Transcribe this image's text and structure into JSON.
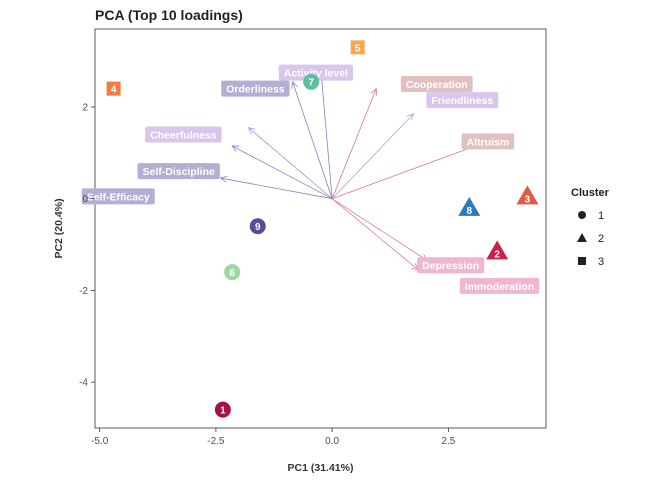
{
  "chart_data": {
    "type": "scatter",
    "title": "PCA (Top 10 loadings)",
    "xlabel": "PC1 (31.41%)",
    "ylabel": "PC2 (20.4%)",
    "xlim": [
      -5.1,
      4.6
    ],
    "ylim": [
      -5.0,
      3.7
    ],
    "xticks": [
      -5.0,
      -2.5,
      0.0,
      2.5
    ],
    "xtick_labels": [
      "-5.0",
      "-2.5",
      "0.0",
      "2.5"
    ],
    "yticks": [
      -4,
      -2,
      0,
      2
    ],
    "ytick_labels": [
      "-4",
      "-2",
      "0",
      "2"
    ],
    "grid": false,
    "legend": {
      "title": "Cluster",
      "placement": "right",
      "items": [
        {
          "label": "1",
          "shape": "circle"
        },
        {
          "label": "2",
          "shape": "triangle"
        },
        {
          "label": "3",
          "shape": "square"
        }
      ]
    },
    "points": [
      {
        "label": "1",
        "x": -2.35,
        "y": -4.6,
        "cluster": "1",
        "color": "#a50f4a"
      },
      {
        "label": "6",
        "x": -2.15,
        "y": -1.6,
        "cluster": "1",
        "color": "#9fd89f"
      },
      {
        "label": "9",
        "x": -1.6,
        "y": -0.6,
        "cluster": "1",
        "color": "#5b4b9a"
      },
      {
        "label": "7",
        "x": -0.45,
        "y": 2.55,
        "cluster": "1",
        "color": "#5ebf9f"
      },
      {
        "label": "8",
        "x": 2.95,
        "y": -0.2,
        "cluster": "2",
        "color": "#2e7ab8"
      },
      {
        "label": "2",
        "x": 3.55,
        "y": -1.15,
        "cluster": "2",
        "color": "#c8224a"
      },
      {
        "label": "3",
        "x": 4.2,
        "y": 0.05,
        "cluster": "2",
        "color": "#e05a44"
      },
      {
        "label": "4",
        "x": -4.7,
        "y": 2.4,
        "cluster": "3",
        "color": "#f47d3e"
      },
      {
        "label": "5",
        "x": 0.55,
        "y": 3.3,
        "cluster": "3",
        "color": "#f7a84f"
      }
    ],
    "loadings": [
      {
        "name": "Activity level",
        "x": -0.25,
        "y": 2.9,
        "color": "#d9c6ec",
        "arrow_color": "#8b7fc0",
        "lx": -0.35,
        "ly": 2.75
      },
      {
        "name": "Orderliness",
        "x": -0.85,
        "y": 2.55,
        "color": "#b3afd4",
        "arrow_color": "#8b7fc0",
        "lx": -1.65,
        "ly": 2.4
      },
      {
        "name": "Cooperation",
        "x": 0.95,
        "y": 2.4,
        "color": "#e3c0c0",
        "arrow_color": "#d97a8a",
        "lx": 2.25,
        "ly": 2.5
      },
      {
        "name": "Friendliness",
        "x": 1.75,
        "y": 1.85,
        "color": "#d9c6ec",
        "arrow_color": "#b0a2dc",
        "lx": 2.8,
        "ly": 2.15
      },
      {
        "name": "Altruism",
        "x": 3.35,
        "y": 1.25,
        "color": "#e3c0c0",
        "arrow_color": "#d97a8a",
        "lx": 3.35,
        "ly": 1.25
      },
      {
        "name": "Cheerfulness",
        "x": -1.8,
        "y": 1.55,
        "color": "#d9c6ec",
        "arrow_color": "#a798d4",
        "lx": -3.2,
        "ly": 1.4
      },
      {
        "name": "Self-Discipline",
        "x": -2.15,
        "y": 1.15,
        "color": "#b3afd4",
        "arrow_color": "#8b7fc0",
        "lx": -3.3,
        "ly": 0.6
      },
      {
        "name": "Self-Efficacy",
        "x": -2.4,
        "y": 0.45,
        "color": "#b3afd4",
        "arrow_color": "#8b7fc0",
        "lx": -4.6,
        "ly": 0.05
      },
      {
        "name": "Depression",
        "x": 1.85,
        "y": -1.55,
        "color": "#f0b5cf",
        "arrow_color": "#e07aa0",
        "lx": 2.55,
        "ly": -1.45
      },
      {
        "name": "Immoderation",
        "x": 2.05,
        "y": -1.35,
        "color": "#f0b5cf",
        "arrow_color": "#e07aa0",
        "lx": 3.6,
        "ly": -1.9
      }
    ]
  }
}
